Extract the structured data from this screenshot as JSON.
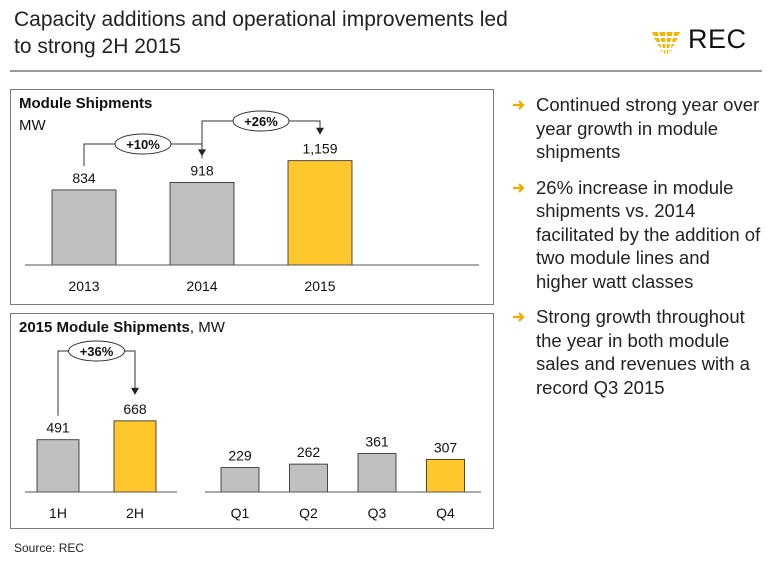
{
  "header": {
    "title_line1": "Capacity additions and operational improvements led",
    "title_line2": "to strong 2H 2015",
    "logo_text": "REC"
  },
  "colors": {
    "gray_bar": "#c0c0c0",
    "yellow_bar": "#ffc72c",
    "arrow_orange": "#f2a900",
    "logo_yellow": "#f5b400"
  },
  "chart_data": [
    {
      "type": "bar",
      "title": "Module Shipments",
      "ylabel": "MW",
      "categories": [
        "2013",
        "2014",
        "2015"
      ],
      "values": [
        834,
        918,
        1159
      ],
      "value_labels": [
        "834",
        "918",
        "1,159"
      ],
      "highlight": [
        false,
        false,
        true
      ],
      "annotations": [
        {
          "label": "+10%",
          "from": 0,
          "to": 1
        },
        {
          "label": "+26%",
          "from": 1,
          "to": 2
        }
      ]
    },
    {
      "type": "bar",
      "title": "2015 Module Shipments",
      "ylabel": "MW",
      "groups": [
        {
          "categories": [
            "1H",
            "2H"
          ],
          "values": [
            491,
            668
          ],
          "value_labels": [
            "491",
            "668"
          ],
          "highlight": [
            false,
            true
          ],
          "annotations": [
            {
              "label": "+36%",
              "from": 0,
              "to": 1
            }
          ]
        },
        {
          "categories": [
            "Q1",
            "Q2",
            "Q3",
            "Q4"
          ],
          "values": [
            229,
            262,
            361,
            307
          ],
          "value_labels": [
            "229",
            "262",
            "361",
            "307"
          ],
          "highlight": [
            false,
            false,
            false,
            true
          ],
          "annotations": []
        }
      ]
    }
  ],
  "panel2_title": "2015 Module Shipments",
  "panel2_unit": ", MW",
  "bullets": [
    "Continued strong year over year growth in module shipments",
    "26% increase in module shipments vs. 2014 facilitated by the addition of two module lines and higher watt classes",
    "Strong growth throughout the year in both module sales and revenues with a record Q3 2015"
  ],
  "source": "Source: REC"
}
